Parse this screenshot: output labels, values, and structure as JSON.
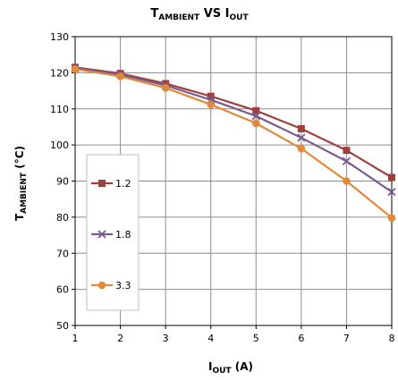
{
  "chart_data": {
    "type": "line",
    "title": {
      "main": "T",
      "main_sub": "AMBIENT",
      "vs": " VS ",
      "second": "I",
      "second_sub": "OUT"
    },
    "xlabel": {
      "main": "I",
      "sub": "OUT",
      "unit": " (A)"
    },
    "ylabel": {
      "main": "T",
      "sub": "AMBIENT",
      "unit": " (°C)"
    },
    "x": [
      1,
      2,
      3,
      4,
      5,
      6,
      7,
      8
    ],
    "xlim": [
      1,
      8
    ],
    "ylim": [
      50,
      130
    ],
    "yticks": [
      50,
      60,
      70,
      80,
      90,
      100,
      110,
      120,
      130
    ],
    "xticks": [
      1,
      2,
      3,
      4,
      5,
      6,
      7,
      8
    ],
    "grid": true,
    "legend_position": "left",
    "series": [
      {
        "name": "1.2",
        "color": "#a0403d",
        "marker": "square",
        "values": [
          121.5,
          119.8,
          117.0,
          113.5,
          109.5,
          104.5,
          98.5,
          91.0
        ]
      },
      {
        "name": "1.8",
        "color": "#7a5c91",
        "marker": "x",
        "values": [
          121.3,
          119.5,
          116.5,
          112.5,
          108.0,
          102.0,
          95.5,
          87.0
        ]
      },
      {
        "name": "3.3",
        "color": "#e08a3a",
        "marker": "circle",
        "values": [
          121.0,
          119.0,
          115.8,
          111.2,
          106.0,
          99.0,
          90.0,
          79.8
        ]
      }
    ]
  }
}
